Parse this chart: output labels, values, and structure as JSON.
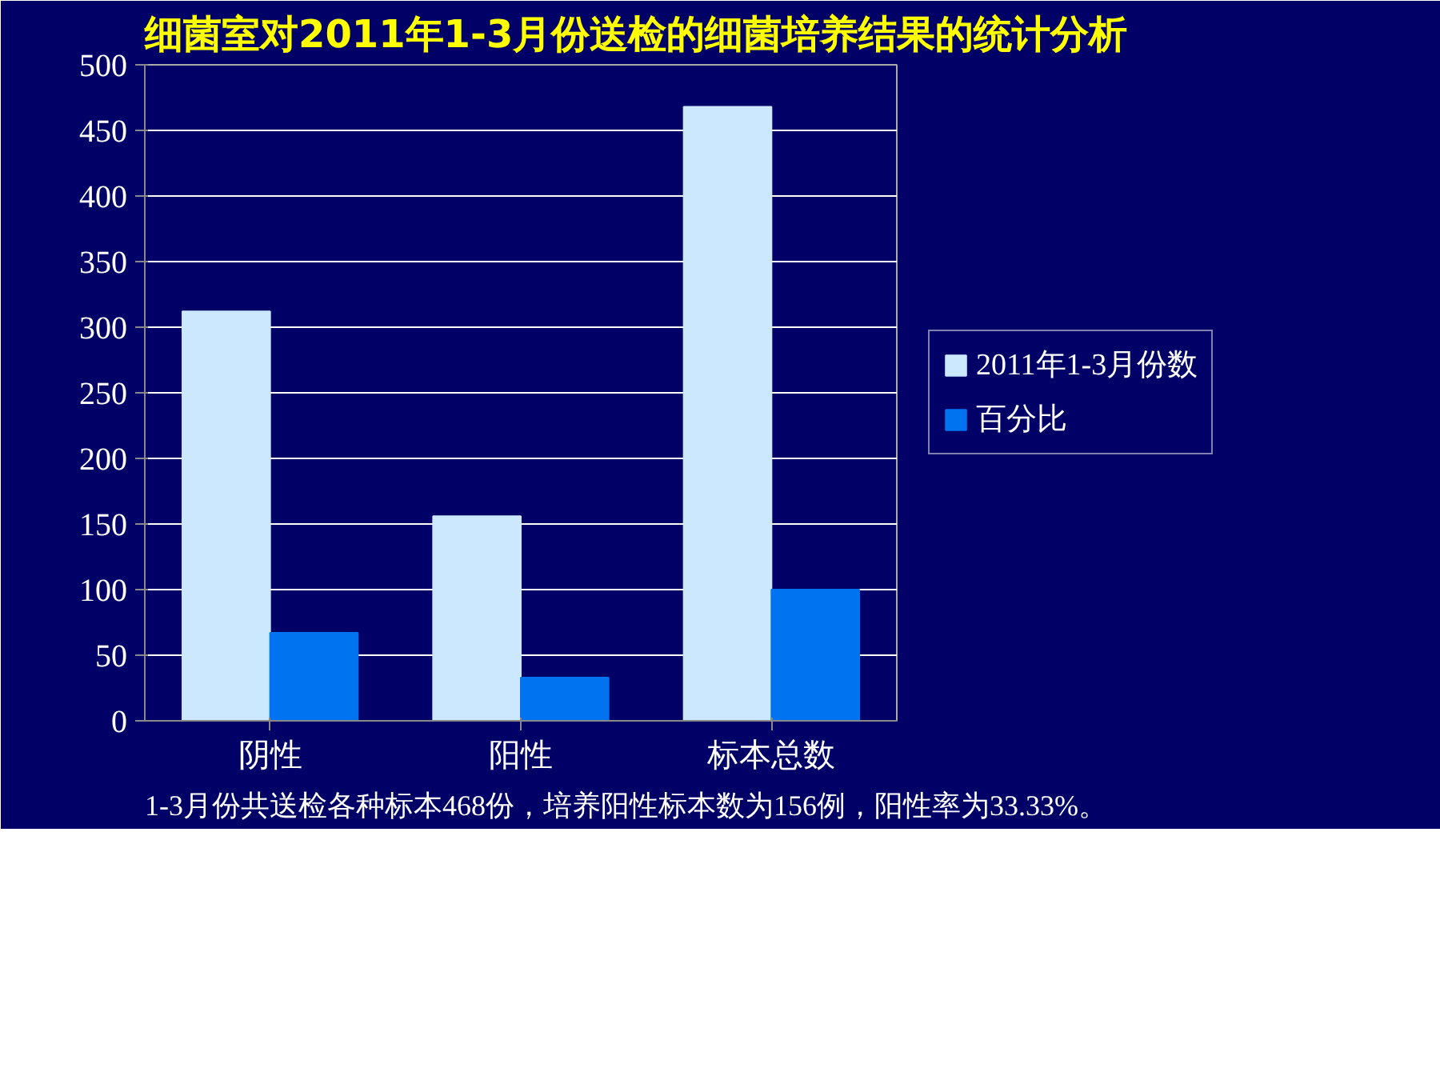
{
  "chart_data": {
    "type": "bar",
    "title": "细菌室对2011年1-3月份送检的细菌培养结果的统计分析",
    "categories": [
      "阴性",
      "阳性",
      "标本总数"
    ],
    "series": [
      {
        "name": "2011年1-3月份数",
        "color": "#cce8ff",
        "values": [
          312,
          156,
          468
        ]
      },
      {
        "name": "百分比",
        "color": "#0073f0",
        "values": [
          67,
          33,
          100
        ]
      }
    ],
    "ylim": [
      0,
      500
    ],
    "yticks": [
      0,
      50,
      100,
      150,
      200,
      250,
      300,
      350,
      400,
      450,
      500
    ],
    "grid": "y",
    "legend": "right",
    "annotations": [
      "1-3月份共送检各种标本468份，培养阳性标本数为156例，阳性率为33.33%。"
    ]
  }
}
